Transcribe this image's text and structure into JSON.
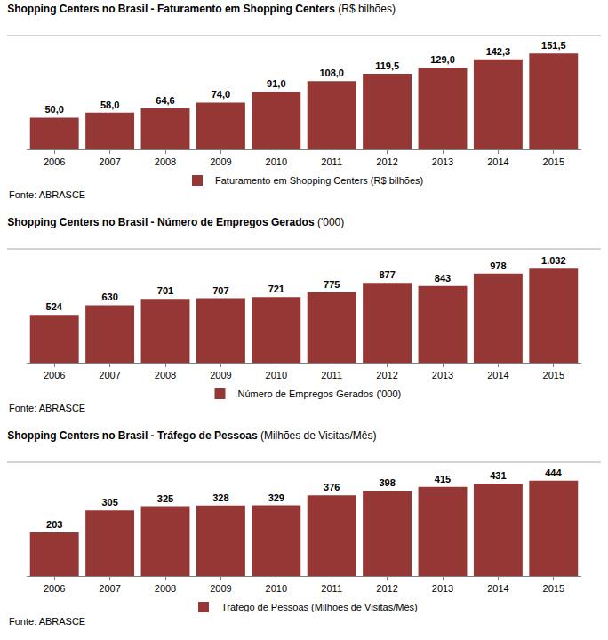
{
  "chart_data": [
    {
      "type": "bar",
      "title": "Shopping Centers no Brasil - Faturamento em Shopping Centers (R$ bilhões)",
      "categories": [
        "2006",
        "2007",
        "2008",
        "2009",
        "2010",
        "2011",
        "2012",
        "2013",
        "2014",
        "2015"
      ],
      "series": [
        {
          "name": "Faturamento em Shopping Centers (R$ bilhões)",
          "color": "#953735",
          "values": [
            50.0,
            58.0,
            64.6,
            74.0,
            91.0,
            108.0,
            119.5,
            129.0,
            142.3,
            151.5
          ],
          "value_labels": [
            "50,0",
            "58,0",
            "64,6",
            "74,0",
            "91,0",
            "108,0",
            "119,5",
            "129,0",
            "142,3",
            "151,5"
          ]
        }
      ],
      "ylim": [
        0,
        180
      ],
      "tick_labels": "x",
      "data_labels": true,
      "grid": false,
      "legend": "bottom",
      "annotations": [
        "Fonte: ABRASCE"
      ]
    },
    {
      "type": "bar",
      "title": "Shopping Centers no Brasil - Número de Empregos Gerados ('000)",
      "categories": [
        "2006",
        "2007",
        "2008",
        "2009",
        "2010",
        "2011",
        "2012",
        "2013",
        "2014",
        "2015"
      ],
      "series": [
        {
          "name": "Número de Empregos Gerados ('000)",
          "color": "#953735",
          "values": [
            524,
            630,
            701,
            707,
            721,
            775,
            877,
            843,
            978,
            1032
          ],
          "value_labels": [
            "524",
            "630",
            "701",
            "707",
            "721",
            "775",
            "877",
            "843",
            "978",
            "1.032"
          ]
        }
      ],
      "ylim": [
        0,
        1250
      ],
      "tick_labels": "x",
      "data_labels": true,
      "grid": false,
      "legend": "bottom",
      "annotations": [
        "Fonte: ABRASCE"
      ]
    },
    {
      "type": "bar",
      "title": "Shopping Centers no Brasil - Tráfego de Pessoas (Milhões de Visitas/Mês)",
      "categories": [
        "2006",
        "2007",
        "2008",
        "2009",
        "2010",
        "2011",
        "2012",
        "2013",
        "2014",
        "2015"
      ],
      "series": [
        {
          "name": "Tráfego de Pessoas (Milhões de Visitas/Mês)",
          "color": "#953735",
          "values": [
            203,
            305,
            325,
            328,
            329,
            376,
            398,
            415,
            431,
            444
          ],
          "value_labels": [
            "203",
            "305",
            "325",
            "328",
            "329",
            "376",
            "398",
            "415",
            "431",
            "444"
          ]
        }
      ],
      "ylim": [
        0,
        530
      ],
      "tick_labels": "x",
      "data_labels": true,
      "grid": false,
      "legend": "bottom",
      "annotations": [
        "Fonte: ABRASCE"
      ]
    }
  ]
}
